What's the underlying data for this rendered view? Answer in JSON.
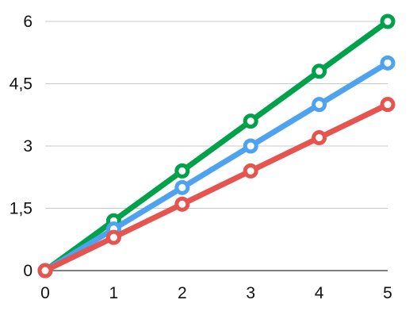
{
  "chart_data": {
    "type": "line",
    "title": "",
    "xlabel": "",
    "ylabel": "",
    "x": [
      0,
      1,
      2,
      3,
      4,
      5
    ],
    "xlim": [
      0,
      5
    ],
    "ylim": [
      0,
      6
    ],
    "x_ticks": [
      "0",
      "1",
      "2",
      "3",
      "4",
      "5"
    ],
    "y_ticks": [
      {
        "value": 0,
        "label": "0"
      },
      {
        "value": 1.5,
        "label": "1,5"
      },
      {
        "value": 3,
        "label": "3"
      },
      {
        "value": 4.5,
        "label": "4,5"
      },
      {
        "value": 6,
        "label": "6"
      }
    ],
    "grid": "horizontal",
    "legend": "none",
    "series": [
      {
        "color": "#00a14b",
        "values": [
          0,
          1.2,
          2.4,
          3.6,
          4.8,
          6.0
        ]
      },
      {
        "color": "#4da3f0",
        "values": [
          0,
          1.0,
          2.0,
          3.0,
          4.0,
          5.0
        ]
      },
      {
        "color": "#e5544f",
        "values": [
          0,
          0.8,
          1.6,
          2.4,
          3.2,
          4.0
        ]
      }
    ]
  }
}
